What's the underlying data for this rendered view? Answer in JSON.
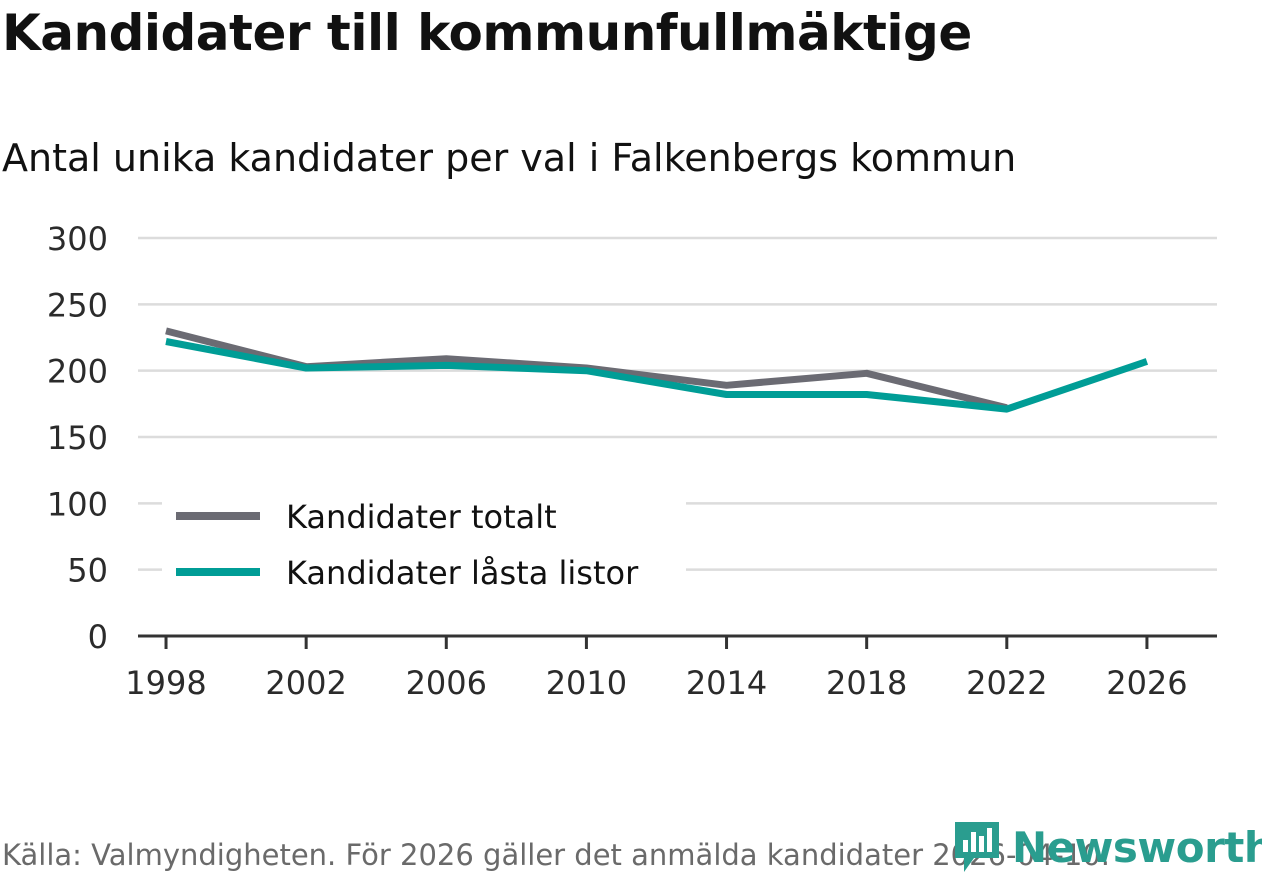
{
  "header": {
    "title": "Kandidater till kommunfullmäktige",
    "subtitle": "Antal unika kandidater per val i Falkenbergs kommun"
  },
  "footer": {
    "source": "Källa: Valmyndigheten. För 2026 gäller det anmälda kandidater 2026-04-10.",
    "brand": "Newsworthy"
  },
  "colors": {
    "series_total": "#6b6b73",
    "series_locked": "#009d96",
    "brand": "#2a9d8f",
    "grid": "#dcdcdc",
    "axis": "#333333"
  },
  "chart_data": {
    "type": "line",
    "title": "Kandidater till kommunfullmäktige",
    "subtitle": "Antal unika kandidater per val i Falkenbergs kommun",
    "xlabel": "",
    "ylabel": "",
    "x": [
      1998,
      2002,
      2006,
      2010,
      2014,
      2018,
      2022,
      2026
    ],
    "xticks": [
      "1998",
      "2002",
      "2006",
      "2010",
      "2014",
      "2018",
      "2022",
      "2026"
    ],
    "xlim": [
      1997.2,
      2028.0
    ],
    "ylim": [
      0,
      300
    ],
    "yticks": [
      0,
      50,
      100,
      150,
      200,
      250,
      300
    ],
    "grid": true,
    "legend_position": "bottom-left",
    "series": [
      {
        "name": "Kandidater totalt",
        "color": "#6b6b73",
        "x": [
          1998,
          2002,
          2006,
          2010,
          2014,
          2018,
          2022
        ],
        "values": [
          230,
          203,
          209,
          202,
          189,
          198,
          172
        ]
      },
      {
        "name": "Kandidater låsta listor",
        "color": "#009d96",
        "x": [
          1998,
          2002,
          2006,
          2010,
          2014,
          2018,
          2022,
          2026
        ],
        "values": [
          222,
          202,
          204,
          200,
          182,
          182,
          171,
          207
        ]
      }
    ]
  }
}
